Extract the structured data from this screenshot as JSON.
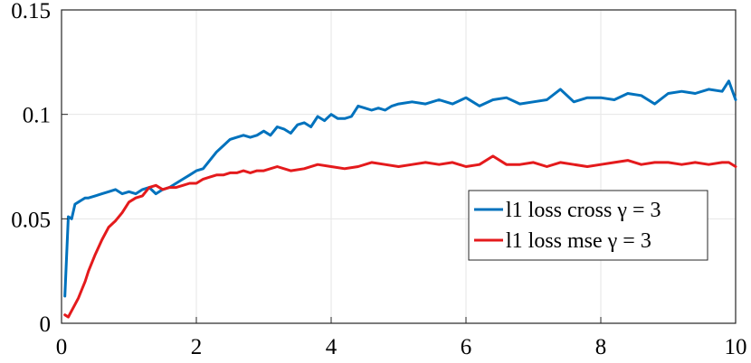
{
  "chart_data": {
    "type": "line",
    "title": "",
    "xlabel": "",
    "ylabel": "",
    "xlim": [
      0,
      10
    ],
    "ylim": [
      0,
      0.15
    ],
    "xticks": [
      0,
      2,
      4,
      6,
      8,
      10
    ],
    "xtick_labels": [
      "0",
      "2",
      "4",
      "6",
      "8",
      "10"
    ],
    "yticks": [
      0,
      0.05,
      0.1,
      0.15
    ],
    "ytick_labels": [
      "0",
      "0.05",
      "0.1",
      "0.15"
    ],
    "grid": true,
    "legend_position": "center-right",
    "series": [
      {
        "name": "l1 loss cross γ = 3",
        "color": "#0072BD",
        "x": [
          0.05,
          0.1,
          0.15,
          0.2,
          0.25,
          0.3,
          0.35,
          0.4,
          0.5,
          0.6,
          0.7,
          0.8,
          0.9,
          1.0,
          1.1,
          1.2,
          1.3,
          1.4,
          1.5,
          1.6,
          1.7,
          1.8,
          1.9,
          2.0,
          2.1,
          2.2,
          2.3,
          2.4,
          2.5,
          2.6,
          2.7,
          2.8,
          2.9,
          3.0,
          3.1,
          3.2,
          3.3,
          3.4,
          3.5,
          3.6,
          3.7,
          3.8,
          3.9,
          4.0,
          4.1,
          4.2,
          4.3,
          4.4,
          4.5,
          4.6,
          4.7,
          4.8,
          4.9,
          5.0,
          5.2,
          5.4,
          5.6,
          5.8,
          6.0,
          6.2,
          6.4,
          6.6,
          6.8,
          7.0,
          7.2,
          7.4,
          7.6,
          7.8,
          8.0,
          8.2,
          8.4,
          8.6,
          8.8,
          9.0,
          9.2,
          9.4,
          9.6,
          9.8,
          9.9,
          10.0
        ],
        "y": [
          0.013,
          0.051,
          0.05,
          0.057,
          0.058,
          0.059,
          0.06,
          0.06,
          0.061,
          0.062,
          0.063,
          0.064,
          0.062,
          0.063,
          0.062,
          0.064,
          0.065,
          0.062,
          0.064,
          0.065,
          0.067,
          0.069,
          0.071,
          0.073,
          0.074,
          0.078,
          0.082,
          0.085,
          0.088,
          0.089,
          0.09,
          0.089,
          0.09,
          0.092,
          0.09,
          0.094,
          0.093,
          0.091,
          0.095,
          0.096,
          0.094,
          0.099,
          0.097,
          0.1,
          0.098,
          0.098,
          0.099,
          0.104,
          0.103,
          0.102,
          0.103,
          0.102,
          0.104,
          0.105,
          0.106,
          0.105,
          0.107,
          0.105,
          0.108,
          0.104,
          0.107,
          0.108,
          0.105,
          0.106,
          0.107,
          0.112,
          0.106,
          0.108,
          0.108,
          0.107,
          0.11,
          0.109,
          0.105,
          0.11,
          0.111,
          0.11,
          0.112,
          0.111,
          0.116,
          0.107
        ]
      },
      {
        "name": "l1 loss mse γ = 3",
        "color": "#E41A1C",
        "x": [
          0.05,
          0.1,
          0.15,
          0.2,
          0.25,
          0.3,
          0.35,
          0.4,
          0.5,
          0.6,
          0.7,
          0.8,
          0.9,
          1.0,
          1.1,
          1.2,
          1.3,
          1.4,
          1.5,
          1.6,
          1.7,
          1.8,
          1.9,
          2.0,
          2.1,
          2.2,
          2.3,
          2.4,
          2.5,
          2.6,
          2.7,
          2.8,
          2.9,
          3.0,
          3.2,
          3.4,
          3.6,
          3.8,
          4.0,
          4.2,
          4.4,
          4.6,
          4.8,
          5.0,
          5.2,
          5.4,
          5.6,
          5.8,
          6.0,
          6.2,
          6.4,
          6.6,
          6.8,
          7.0,
          7.2,
          7.4,
          7.6,
          7.8,
          8.0,
          8.2,
          8.4,
          8.6,
          8.8,
          9.0,
          9.2,
          9.4,
          9.6,
          9.8,
          9.9,
          10.0
        ],
        "y": [
          0.004,
          0.003,
          0.006,
          0.009,
          0.012,
          0.016,
          0.02,
          0.025,
          0.033,
          0.04,
          0.046,
          0.049,
          0.053,
          0.058,
          0.06,
          0.061,
          0.065,
          0.066,
          0.064,
          0.065,
          0.065,
          0.066,
          0.067,
          0.067,
          0.069,
          0.07,
          0.071,
          0.071,
          0.072,
          0.072,
          0.073,
          0.072,
          0.073,
          0.073,
          0.075,
          0.073,
          0.074,
          0.076,
          0.075,
          0.074,
          0.075,
          0.077,
          0.076,
          0.075,
          0.076,
          0.077,
          0.076,
          0.077,
          0.075,
          0.076,
          0.08,
          0.076,
          0.076,
          0.077,
          0.075,
          0.077,
          0.076,
          0.075,
          0.076,
          0.077,
          0.078,
          0.076,
          0.077,
          0.077,
          0.076,
          0.077,
          0.076,
          0.077,
          0.077,
          0.075
        ]
      }
    ]
  }
}
